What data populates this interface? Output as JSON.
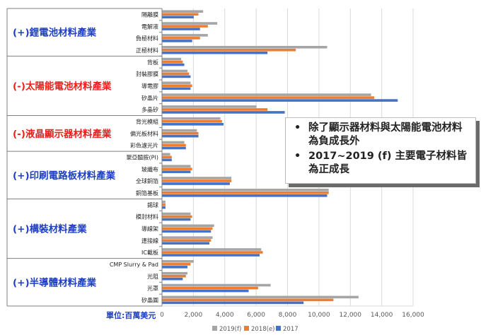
{
  "chart_data": {
    "type": "bar",
    "orientation": "horizontal",
    "xlabel": "單位:百萬美元",
    "xlim": [
      0,
      16000
    ],
    "x_ticks": [
      0,
      2000,
      4000,
      6000,
      8000,
      10000,
      12000,
      14000,
      16000
    ],
    "x_tick_labels": [
      "0",
      "2,000",
      "4,000",
      "6,000",
      "8,000",
      "10,000",
      "12,000",
      "14,000",
      "16,000"
    ],
    "grid": "vertical",
    "legend_position": "bottom",
    "series": [
      {
        "name": "2019(f)",
        "color": "#a5a5a5"
      },
      {
        "name": "2018(e)",
        "color": "#ed7d31"
      },
      {
        "name": "2017",
        "color": "#4472c4"
      }
    ],
    "groups": [
      {
        "label": "(+)鋰電池材料產業",
        "label_color": "#1f3fbf",
        "items": [
          {
            "category": "隔離膜",
            "values": [
              2600,
              2300,
              2000
            ]
          },
          {
            "category": "電解液",
            "values": [
              3500,
              2900,
              2400
            ]
          },
          {
            "category": "負極材料",
            "values": [
              2900,
              2400,
              1900
            ]
          },
          {
            "category": "正極材料",
            "values": [
              10500,
              8500,
              6700
            ]
          }
        ]
      },
      {
        "label": "(-)太陽能電池材料產業",
        "label_color": "#e8211c",
        "items": [
          {
            "category": "背板",
            "values": [
              1200,
              1300,
              1400
            ]
          },
          {
            "category": "封裝膠膜",
            "values": [
              1600,
              1700,
              1800
            ]
          },
          {
            "category": "導電膠",
            "values": [
              1800,
              1900,
              1800
            ]
          },
          {
            "category": "矽晶片",
            "values": [
              13300,
              13500,
              15000
            ]
          },
          {
            "category": "多晶矽",
            "values": [
              6000,
              6700,
              7800
            ]
          }
        ]
      },
      {
        "label": "(-)液晶顯示器材料產業",
        "label_color": "#e8211c",
        "items": [
          {
            "category": "背光模組",
            "values": [
              3700,
              3800,
              3900
            ]
          },
          {
            "category": "偏光板材料",
            "values": [
              2200,
              2300,
              2300
            ]
          },
          {
            "category": "彩色濾光片",
            "values": [
              1400,
              1500,
              1500
            ]
          }
        ]
      },
      {
        "label": "(+)印刷電路板材料產業",
        "label_color": "#1f3fbf",
        "items": [
          {
            "category": "聚亞醯胺(PI)",
            "values": [
              500,
              600,
              600
            ]
          },
          {
            "category": "玻纖布",
            "values": [
              1800,
              1900,
              1800
            ]
          },
          {
            "category": "全球銅箔",
            "values": [
              4400,
              4400,
              4300
            ]
          },
          {
            "category": "銅箔基板",
            "values": [
              10600,
              10600,
              10500
            ]
          }
        ]
      },
      {
        "label": "(+)構裝材料產業",
        "label_color": "#1f3fbf",
        "items": [
          {
            "category": "錫球",
            "values": [
              200,
              200,
              200
            ]
          },
          {
            "category": "模封材料",
            "values": [
              1800,
              1900,
              1800
            ]
          },
          {
            "category": "導線架",
            "values": [
              3300,
              3200,
              3100
            ]
          },
          {
            "category": "連接線",
            "values": [
              3200,
              3100,
              3000
            ]
          },
          {
            "category": "IC載板",
            "values": [
              6300,
              6400,
              6200
            ]
          }
        ]
      },
      {
        "label": "(+)半導體材料產業",
        "label_color": "#1f3fbf",
        "items": [
          {
            "category": "CMP Slurry & Pad",
            "values": [
              2000,
              1800,
              1600
            ]
          },
          {
            "category": "光阻",
            "values": [
              1600,
              1500,
              1300
            ]
          },
          {
            "category": "光罩",
            "values": [
              6900,
              6100,
              5500
            ]
          },
          {
            "category": "矽晶圓",
            "values": [
              12500,
              10900,
              9000
            ]
          }
        ]
      }
    ]
  },
  "callout": {
    "bullets": [
      "除了顯示器材料與太陽能電池材料為負成長外",
      "2017~2019 (f) 主要電子材料皆為正成長"
    ]
  }
}
